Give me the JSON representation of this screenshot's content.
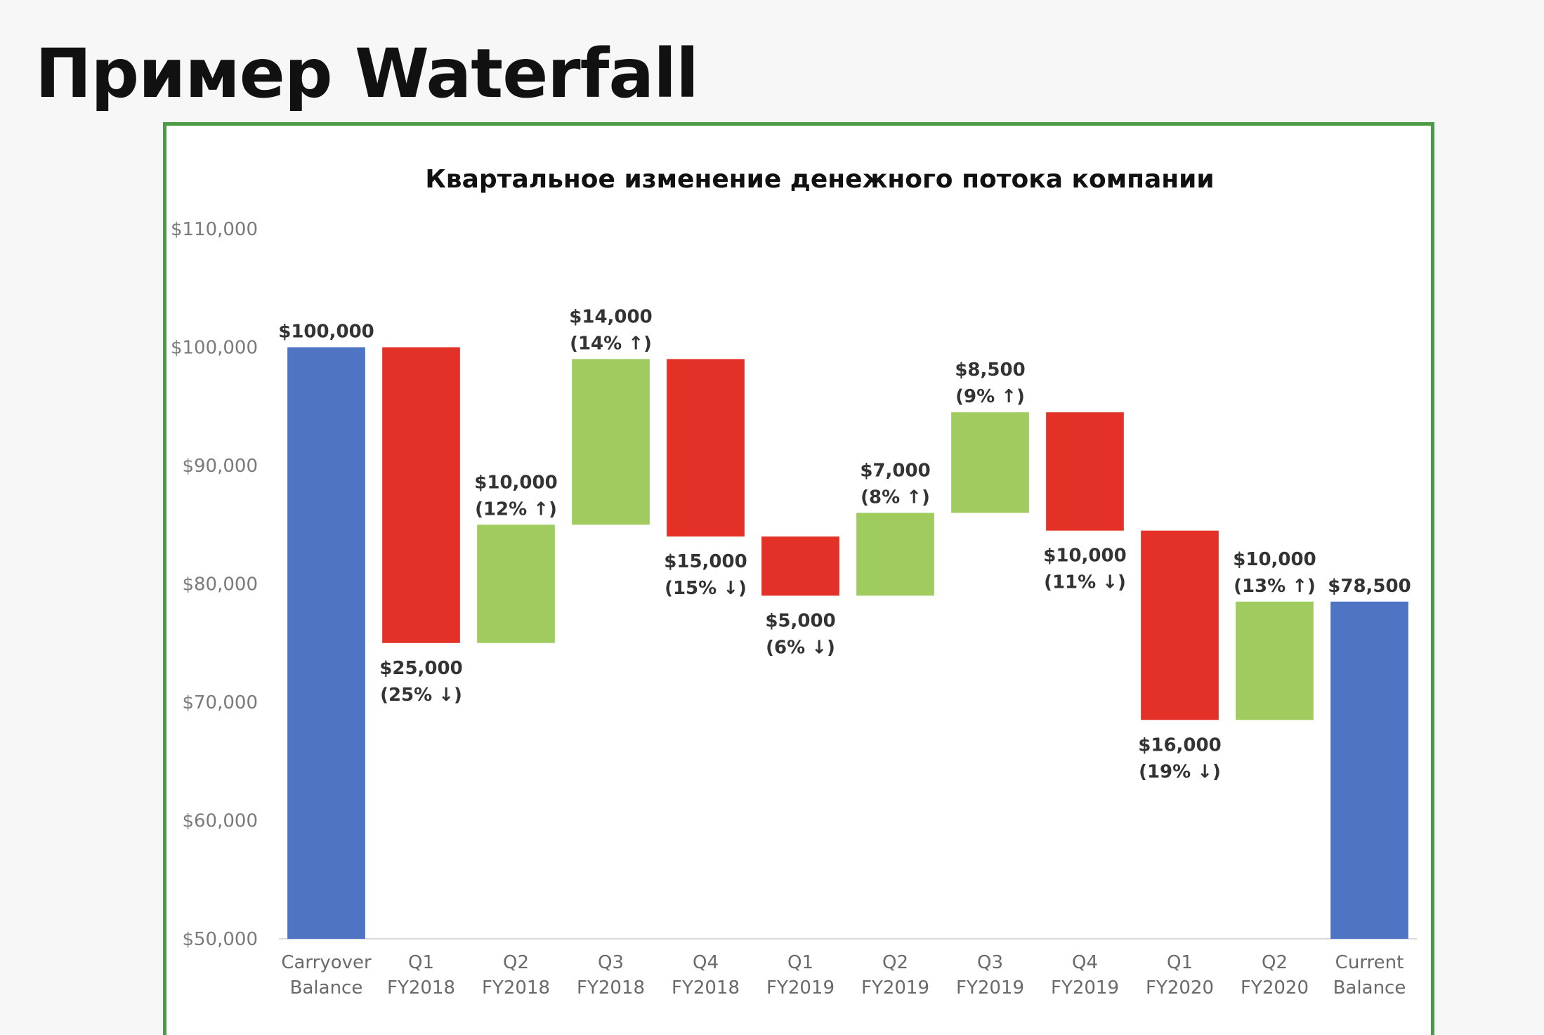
{
  "page": {
    "title": "Пример Waterfall"
  },
  "colors": {
    "total": "#4f74c4",
    "increase": "#9fcb5f",
    "decrease": "#e43127",
    "frame": "#4a9a46"
  },
  "chart_data": {
    "type": "bar",
    "subtype": "waterfall",
    "title": "Квартальное изменение денежного потока компании",
    "xlabel": "",
    "ylabel": "",
    "ylim": [
      50000,
      110000
    ],
    "y_ticks": [
      50000,
      60000,
      70000,
      80000,
      90000,
      100000,
      110000
    ],
    "y_tick_labels": [
      "$50,000",
      "$60,000",
      "$70,000",
      "$80,000",
      "$90,000",
      "$100,000",
      "$110,000"
    ],
    "grid": false,
    "legend": "none",
    "categories": [
      [
        "Carryover",
        "Balance"
      ],
      [
        "Q1",
        "FY2018"
      ],
      [
        "Q2",
        "FY2018"
      ],
      [
        "Q3",
        "FY2018"
      ],
      [
        "Q4",
        "FY2018"
      ],
      [
        "Q1",
        "FY2019"
      ],
      [
        "Q2",
        "FY2019"
      ],
      [
        "Q3",
        "FY2019"
      ],
      [
        "Q4",
        "FY2019"
      ],
      [
        "Q1",
        "FY2020"
      ],
      [
        "Q2",
        "FY2020"
      ],
      [
        "Current",
        "Balance"
      ]
    ],
    "steps": [
      {
        "kind": "total",
        "value": 100000,
        "labels": [
          "$100,000"
        ]
      },
      {
        "kind": "decrease",
        "value": 25000,
        "labels": [
          "$25,000",
          "(25% ↓)"
        ]
      },
      {
        "kind": "increase",
        "value": 10000,
        "labels": [
          "$10,000",
          "(12% ↑)"
        ]
      },
      {
        "kind": "increase",
        "value": 14000,
        "labels": [
          "$14,000",
          "(14% ↑)"
        ]
      },
      {
        "kind": "decrease",
        "value": 15000,
        "labels": [
          "$15,000",
          "(15% ↓)"
        ]
      },
      {
        "kind": "decrease",
        "value": 5000,
        "labels": [
          "$5,000",
          "(6% ↓)"
        ]
      },
      {
        "kind": "increase",
        "value": 7000,
        "labels": [
          "$7,000",
          "(8% ↑)"
        ]
      },
      {
        "kind": "increase",
        "value": 8500,
        "labels": [
          "$8,500",
          "(9% ↑)"
        ]
      },
      {
        "kind": "decrease",
        "value": 10000,
        "labels": [
          "$10,000",
          "(11% ↓)"
        ]
      },
      {
        "kind": "decrease",
        "value": 16000,
        "labels": [
          "$16,000",
          "(19% ↓)"
        ]
      },
      {
        "kind": "increase",
        "value": 10000,
        "labels": [
          "$10,000",
          "(13% ↑)"
        ]
      },
      {
        "kind": "total",
        "value": 78500,
        "labels": [
          "$78,500"
        ]
      }
    ]
  }
}
